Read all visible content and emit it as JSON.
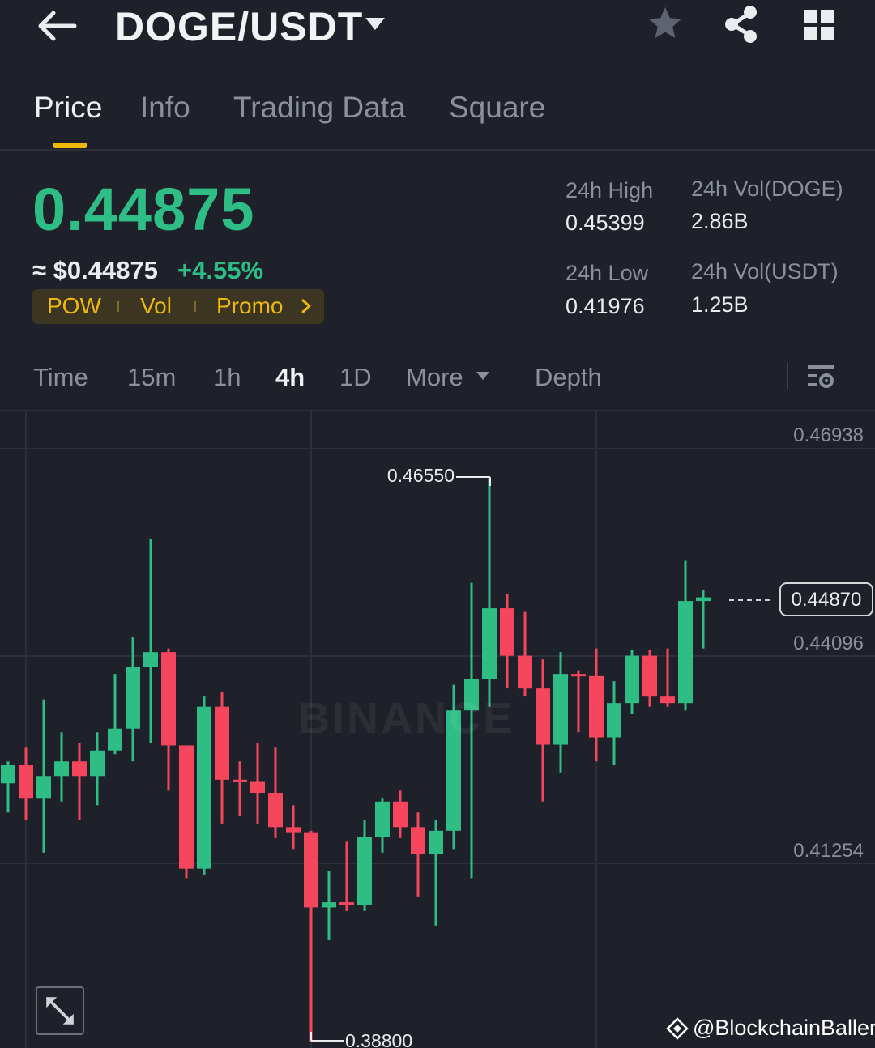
{
  "header": {
    "pair": "DOGE/USDT",
    "icons": [
      "arrow-left-icon",
      "caret-down-icon",
      "star-icon",
      "share-icon",
      "grid-icon"
    ]
  },
  "tabs": [
    {
      "label": "Price",
      "active": true
    },
    {
      "label": "Info",
      "active": false
    },
    {
      "label": "Trading Data",
      "active": false
    },
    {
      "label": "Square",
      "active": false
    }
  ],
  "price": {
    "last": "0.44875",
    "usd": "≈ $0.44875",
    "change": "+4.55%",
    "tags": [
      "POW",
      "Vol",
      "Promo"
    ]
  },
  "stats": {
    "high_label": "24h High",
    "high_value": "0.45399",
    "low_label": "24h Low",
    "low_value": "0.41976",
    "vol_doge_label": "24h Vol(DOGE)",
    "vol_doge_value": "2.86B",
    "vol_usdt_label": "24h Vol(USDT)",
    "vol_usdt_value": "1.25B"
  },
  "intervals": {
    "items": [
      "Time",
      "15m",
      "1h",
      "4h",
      "1D",
      "More",
      "Depth"
    ],
    "active": "4h"
  },
  "colors": {
    "up": "#2ebd85",
    "down": "#f6465d",
    "accent": "#f0b90b",
    "background": "#1e2129"
  },
  "chart": {
    "watermark": "BINANCE",
    "current_price": "0.44870",
    "credit": "@BlockchainBaller"
  },
  "chart_data": {
    "type": "candlestick",
    "interval": "4h",
    "y_axis_labels": [
      "0.46938",
      "0.44096",
      "0.41254"
    ],
    "ylim": [
      0.388,
      0.4745
    ],
    "grid": true,
    "annotations": {
      "max": "0.46550",
      "min": "0.38800",
      "current": "0.44870"
    },
    "candles": [
      {
        "o": 0.4235,
        "h": 0.4265,
        "l": 0.4195,
        "c": 0.426
      },
      {
        "o": 0.426,
        "h": 0.4285,
        "l": 0.4185,
        "c": 0.4215
      },
      {
        "o": 0.4215,
        "h": 0.435,
        "l": 0.414,
        "c": 0.4245
      },
      {
        "o": 0.4245,
        "h": 0.4305,
        "l": 0.421,
        "c": 0.4265
      },
      {
        "o": 0.4265,
        "h": 0.429,
        "l": 0.4185,
        "c": 0.4245
      },
      {
        "o": 0.4245,
        "h": 0.4305,
        "l": 0.4205,
        "c": 0.428
      },
      {
        "o": 0.428,
        "h": 0.4385,
        "l": 0.4275,
        "c": 0.431
      },
      {
        "o": 0.431,
        "h": 0.4435,
        "l": 0.4265,
        "c": 0.4395
      },
      {
        "o": 0.4395,
        "h": 0.457,
        "l": 0.429,
        "c": 0.4415
      },
      {
        "o": 0.4415,
        "h": 0.442,
        "l": 0.4225,
        "c": 0.4287
      },
      {
        "o": 0.4287,
        "h": 0.4285,
        "l": 0.4105,
        "c": 0.4118
      },
      {
        "o": 0.4118,
        "h": 0.4355,
        "l": 0.411,
        "c": 0.434
      },
      {
        "o": 0.434,
        "h": 0.436,
        "l": 0.418,
        "c": 0.424
      },
      {
        "o": 0.424,
        "h": 0.4265,
        "l": 0.419,
        "c": 0.4238
      },
      {
        "o": 0.4238,
        "h": 0.429,
        "l": 0.418,
        "c": 0.4222
      },
      {
        "o": 0.4222,
        "h": 0.4285,
        "l": 0.416,
        "c": 0.4175
      },
      {
        "o": 0.4175,
        "h": 0.4205,
        "l": 0.4145,
        "c": 0.4168
      },
      {
        "o": 0.4168,
        "h": 0.417,
        "l": 0.388,
        "c": 0.4065
      },
      {
        "o": 0.4065,
        "h": 0.4115,
        "l": 0.402,
        "c": 0.4072
      },
      {
        "o": 0.4072,
        "h": 0.4155,
        "l": 0.406,
        "c": 0.4068
      },
      {
        "o": 0.4068,
        "h": 0.4185,
        "l": 0.406,
        "c": 0.4162
      },
      {
        "o": 0.4162,
        "h": 0.4215,
        "l": 0.414,
        "c": 0.421
      },
      {
        "o": 0.421,
        "h": 0.4225,
        "l": 0.416,
        "c": 0.4175
      },
      {
        "o": 0.4175,
        "h": 0.4195,
        "l": 0.408,
        "c": 0.4138
      },
      {
        "o": 0.4138,
        "h": 0.4185,
        "l": 0.404,
        "c": 0.417
      },
      {
        "o": 0.417,
        "h": 0.437,
        "l": 0.4145,
        "c": 0.4335
      },
      {
        "o": 0.4335,
        "h": 0.451,
        "l": 0.4105,
        "c": 0.4378
      },
      {
        "o": 0.4378,
        "h": 0.4655,
        "l": 0.434,
        "c": 0.4475
      },
      {
        "o": 0.4475,
        "h": 0.4495,
        "l": 0.4365,
        "c": 0.441
      },
      {
        "o": 0.441,
        "h": 0.447,
        "l": 0.4355,
        "c": 0.4365
      },
      {
        "o": 0.4365,
        "h": 0.4405,
        "l": 0.421,
        "c": 0.4288
      },
      {
        "o": 0.4288,
        "h": 0.4415,
        "l": 0.425,
        "c": 0.4385
      },
      {
        "o": 0.4385,
        "h": 0.439,
        "l": 0.4305,
        "c": 0.4382
      },
      {
        "o": 0.4382,
        "h": 0.442,
        "l": 0.4265,
        "c": 0.4298
      },
      {
        "o": 0.4298,
        "h": 0.4375,
        "l": 0.426,
        "c": 0.4345
      },
      {
        "o": 0.4345,
        "h": 0.4418,
        "l": 0.433,
        "c": 0.441
      },
      {
        "o": 0.441,
        "h": 0.4418,
        "l": 0.434,
        "c": 0.4355
      },
      {
        "o": 0.4355,
        "h": 0.442,
        "l": 0.434,
        "c": 0.4345
      },
      {
        "o": 0.4345,
        "h": 0.454,
        "l": 0.4335,
        "c": 0.4485
      },
      {
        "o": 0.4485,
        "h": 0.45,
        "l": 0.442,
        "c": 0.449
      }
    ]
  }
}
